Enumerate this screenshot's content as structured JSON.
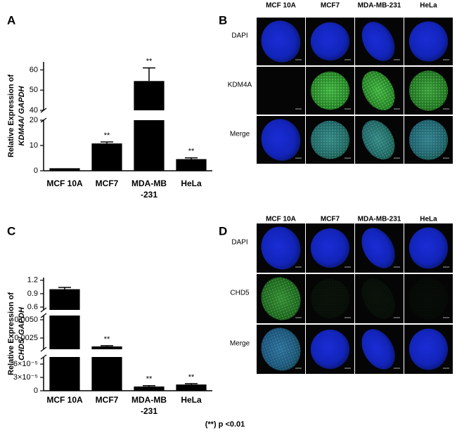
{
  "chart_data": [
    {
      "type": "bar",
      "panel": "A",
      "y_label": [
        "Relative Expression of",
        "KDM4A/ GAPDH"
      ],
      "categories": [
        "MCF 10A",
        "MCF7",
        "MDA-MB\n-231",
        "HeLa"
      ],
      "values": [
        1,
        10.8,
        54.5,
        4.6
      ],
      "errors": [
        0,
        0.6,
        6.5,
        0.5
      ],
      "significance": [
        null,
        "**",
        "**",
        "**"
      ],
      "color": "#000000",
      "y_segments": [
        {
          "ylim": [
            0,
            20
          ],
          "yticks": [
            0,
            10,
            20
          ]
        },
        {
          "ylim": [
            40,
            64
          ],
          "yticks": [
            40,
            50,
            60
          ]
        }
      ]
    },
    {
      "type": "bar",
      "panel": "C",
      "y_label": [
        "Relative Expression of",
        "CHD5/ GAPDH"
      ],
      "categories": [
        "MCF 10A",
        "MCF7",
        "MDA-MB\n-231",
        "HeLa"
      ],
      "values": [
        1.0,
        0.00135,
        9.5e-06,
        1.4e-05
      ],
      "errors": [
        0.04,
        0.0001,
        2e-06,
        2e-06
      ],
      "significance": [
        null,
        "**",
        "**",
        "**"
      ],
      "color": "#000000",
      "y_segments": [
        {
          "ylim": [
            0,
            7.6e-05
          ],
          "yticks": [
            0,
            {
              "value": 3e-05,
              "label": "3×10⁻⁵"
            },
            {
              "value": 6e-05,
              "label": "6×10⁻⁵"
            }
          ]
        },
        {
          "ylim": [
            0.00096,
            0.00558
          ],
          "yticks": [
            0.0025,
            {
              "value": 0.005,
              "label": "0.0050"
            }
          ]
        },
        {
          "ylim": [
            0.537,
            1.26
          ],
          "yticks": [
            0.6,
            0.9,
            1.2
          ]
        }
      ]
    }
  ],
  "image_panels": [
    {
      "panel": "B",
      "columns": [
        "MCF 10A",
        "MCF7",
        "MDA-MB-231",
        "HeLa"
      ],
      "rows": [
        "DAPI",
        "KDM4A",
        "Merge"
      ]
    },
    {
      "panel": "D",
      "columns": [
        "MCF 10A",
        "MCF7",
        "MDA-MB-231",
        "HeLa"
      ],
      "rows": [
        "DAPI",
        "CHD5",
        "Merge"
      ]
    }
  ],
  "footnote": "(**) p <0.01"
}
